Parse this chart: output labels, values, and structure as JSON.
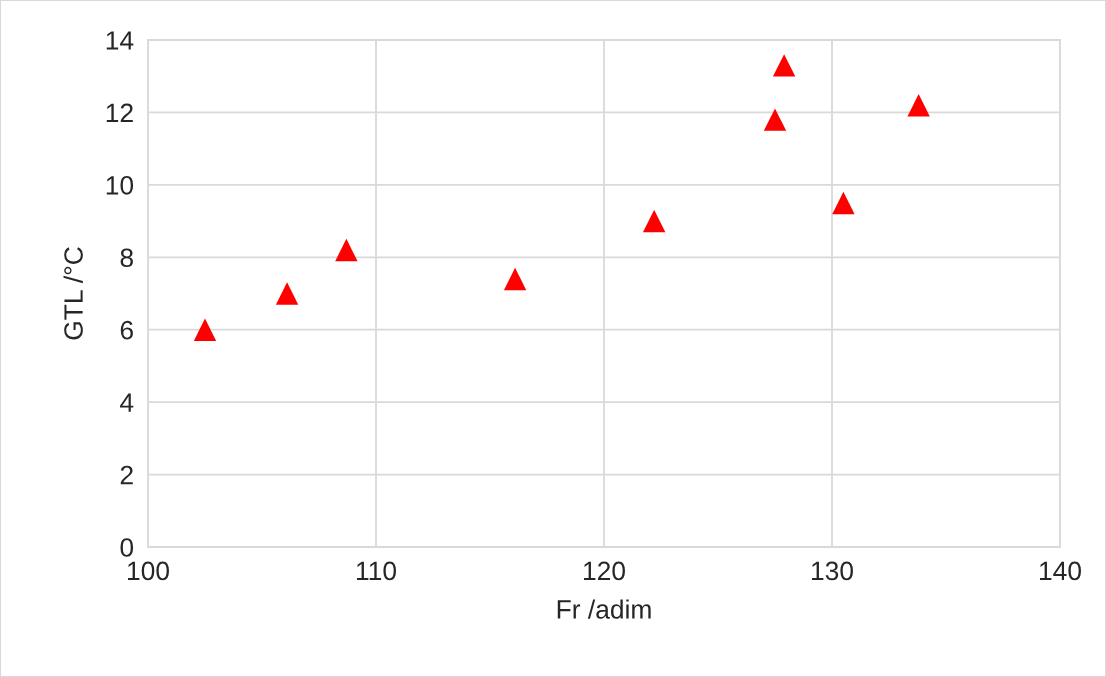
{
  "chart_data": {
    "type": "scatter",
    "xlabel": "Fr /adim",
    "ylabel": "GTL /°C",
    "x": [
      102.5,
      106.1,
      108.7,
      116.1,
      122.2,
      127.5,
      127.9,
      130.5,
      133.8
    ],
    "series": [
      {
        "color": "#ff0000",
        "values": [
          6.0,
          7.0,
          8.2,
          7.4,
          9.0,
          11.8,
          13.3,
          9.5,
          12.2
        ]
      }
    ],
    "xlim": [
      100,
      140
    ],
    "xticks": [
      100,
      110,
      120,
      130,
      140
    ],
    "ylim": [
      0,
      14
    ],
    "yticks": [
      0,
      2,
      4,
      6,
      8,
      10,
      12,
      14
    ],
    "grid": true,
    "marker": "triangle"
  }
}
